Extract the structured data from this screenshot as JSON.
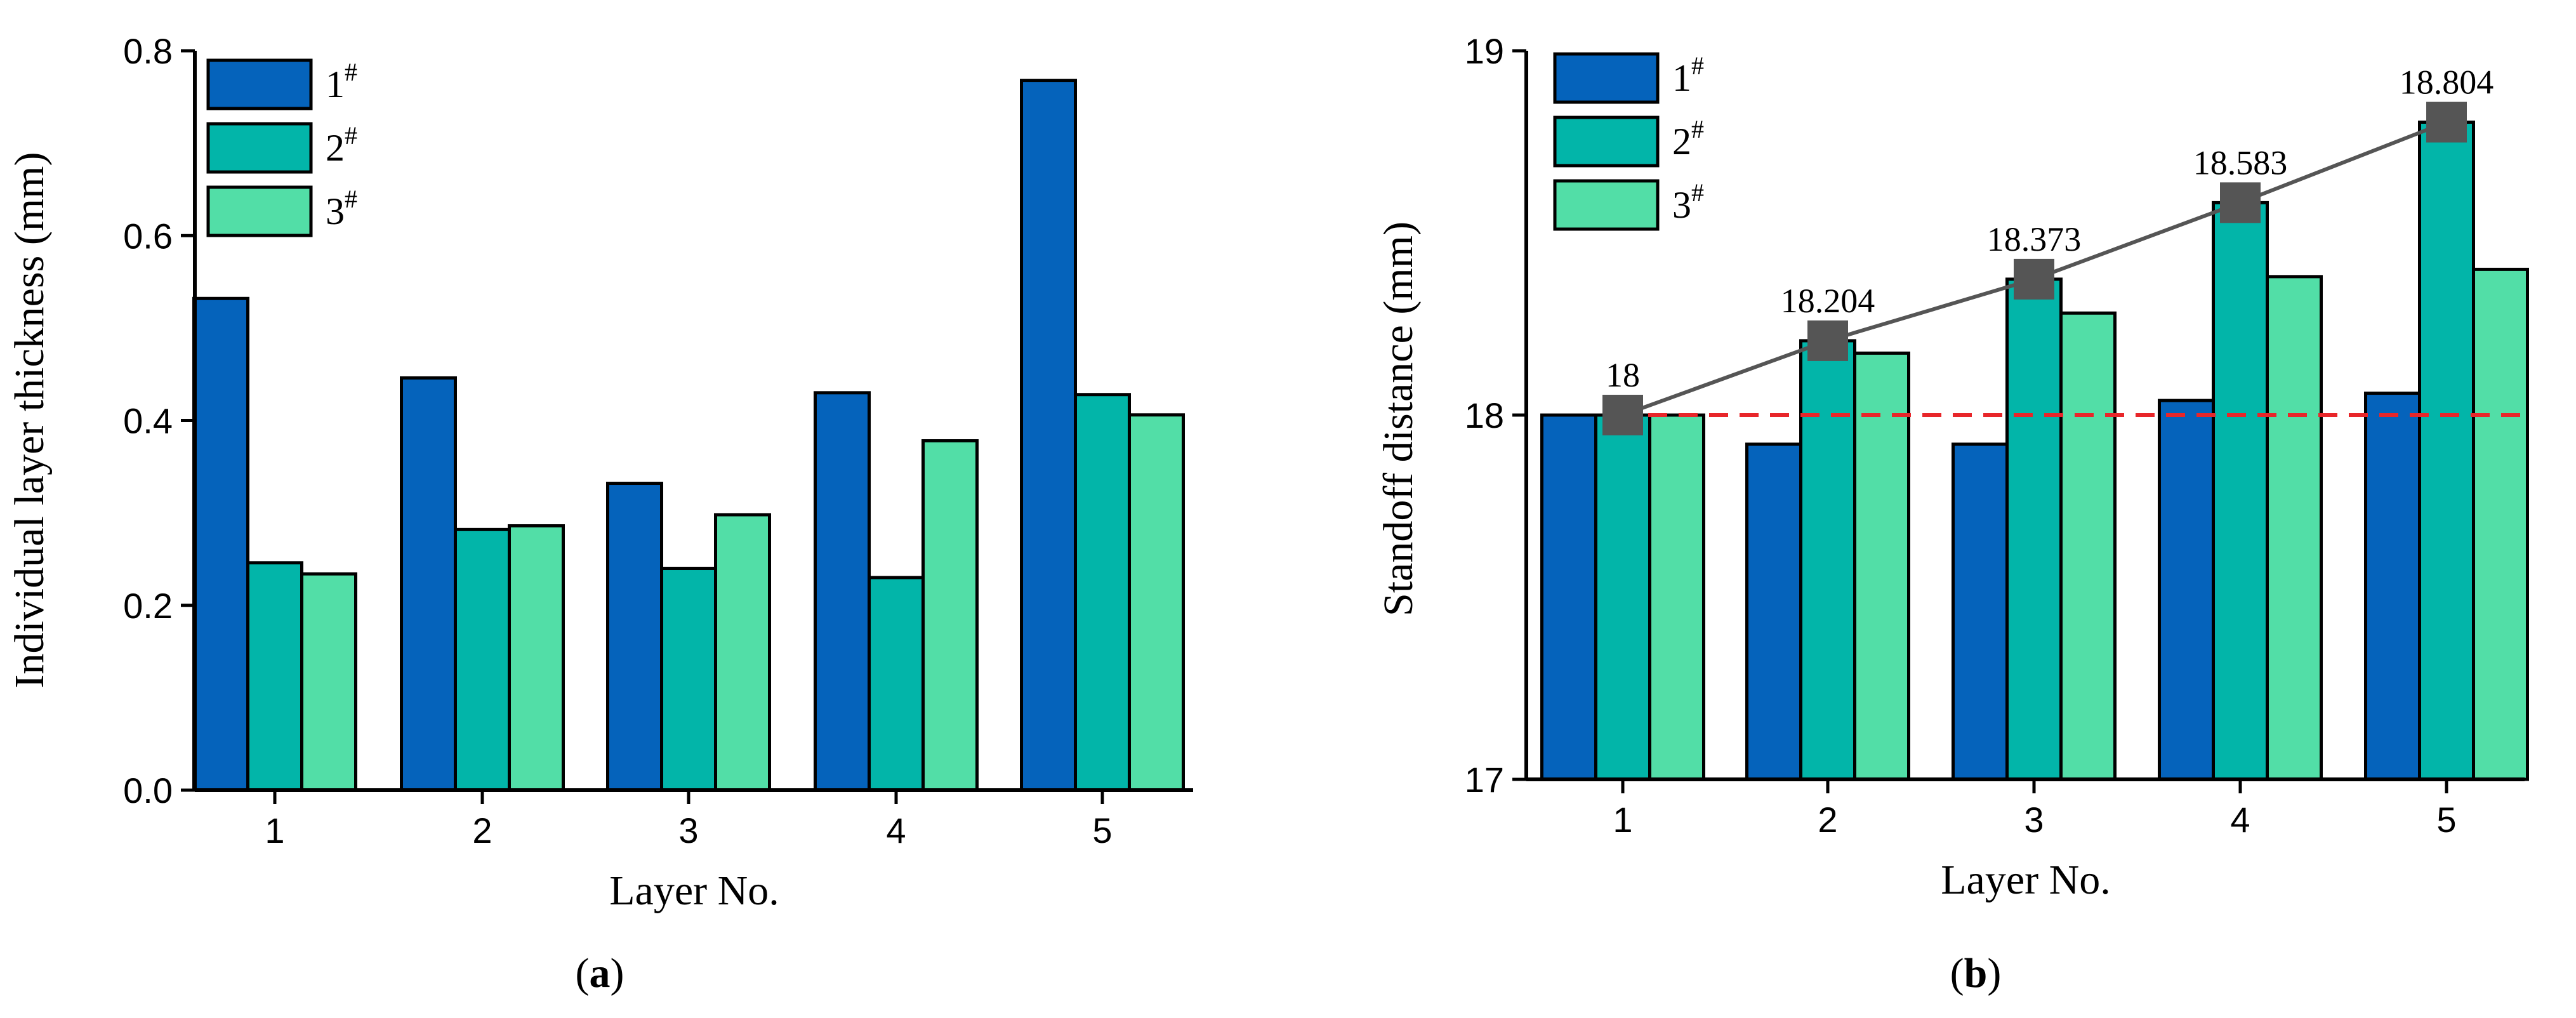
{
  "chart_data": [
    {
      "type": "bar",
      "panel_label": "a",
      "categories": [
        "1",
        "2",
        "3",
        "4",
        "5"
      ],
      "series": [
        {
          "name": "1",
          "superscript": "#",
          "color": "#0563BB",
          "values": [
            0.532,
            0.446,
            0.332,
            0.43,
            0.768
          ]
        },
        {
          "name": "2",
          "superscript": "#",
          "color": "#02B5A9",
          "values": [
            0.246,
            0.282,
            0.24,
            0.23,
            0.428
          ]
        },
        {
          "name": "3",
          "superscript": "#",
          "color": "#52DEA7",
          "values": [
            0.234,
            0.286,
            0.298,
            0.378,
            0.406
          ]
        }
      ],
      "xlabel": "Layer No.",
      "ylabel": "Individual layer thickness (mm)",
      "ylim": [
        0,
        0.8
      ],
      "yticks": [
        "0.0",
        "0.2",
        "0.4",
        "0.6",
        "0.8"
      ],
      "legend_position": "top-left",
      "grid": false
    },
    {
      "type": "bar",
      "panel_label": "b",
      "categories": [
        "1",
        "2",
        "3",
        "4",
        "5"
      ],
      "series": [
        {
          "name": "1",
          "superscript": "#",
          "color": "#0563BB",
          "values": [
            18.0,
            17.92,
            17.92,
            18.04,
            18.06
          ]
        },
        {
          "name": "2",
          "superscript": "#",
          "color": "#02B5A9",
          "values": [
            18.0,
            18.204,
            18.373,
            18.583,
            18.804
          ]
        },
        {
          "name": "3",
          "superscript": "#",
          "color": "#52DEA7",
          "values": [
            18.0,
            18.17,
            18.28,
            18.38,
            18.4
          ]
        }
      ],
      "overlay_line": {
        "marker_color": "#555555",
        "values": [
          18,
          18.204,
          18.373,
          18.583,
          18.804
        ],
        "labels": [
          "18",
          "18.204",
          "18.373",
          "18.583",
          "18.804"
        ]
      },
      "reference_line": {
        "value": 18,
        "color": "#E8262A",
        "style": "dashed"
      },
      "xlabel": "Layer No.",
      "ylabel": "Standoff distance (mm)",
      "ylim": [
        17,
        19
      ],
      "yticks": [
        "17",
        "18",
        "19"
      ],
      "legend_position": "top-left",
      "grid": false
    }
  ]
}
